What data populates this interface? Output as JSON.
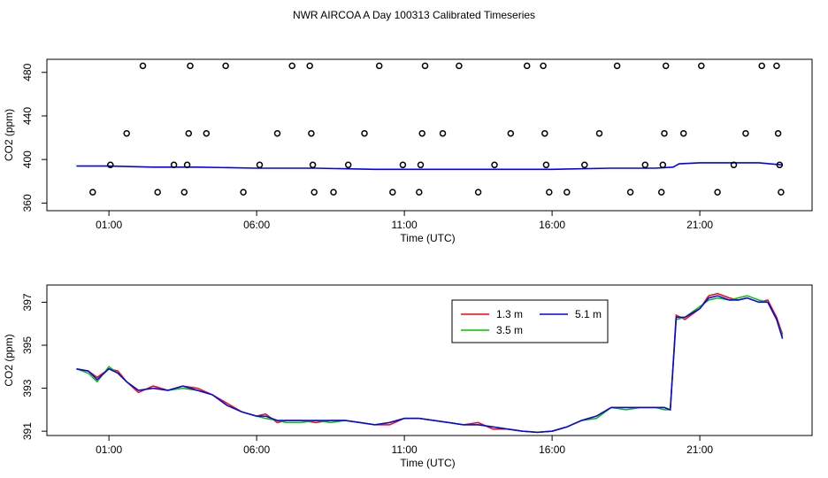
{
  "figure": {
    "title": "NWR AIRCOA A  Day 100313  Calibrated Timeseries"
  },
  "chart_data": [
    {
      "type": "scatter",
      "title": "",
      "xlabel": "Time (UTC)",
      "ylabel": "CO2 (ppm)",
      "x_unit": "hours UTC",
      "xlim": [
        -1.1,
        24.8
      ],
      "ylim": [
        353,
        492
      ],
      "x_ticks": [
        {
          "value": 1,
          "label": "01:00"
        },
        {
          "value": 6,
          "label": "06:00"
        },
        {
          "value": 11,
          "label": "11:00"
        },
        {
          "value": 16,
          "label": "16:00"
        },
        {
          "value": 21,
          "label": "21:00"
        }
      ],
      "y_ticks": [
        {
          "value": 360,
          "label": "360"
        },
        {
          "value": 400,
          "label": "400"
        },
        {
          "value": 440,
          "label": "440"
        },
        {
          "value": 480,
          "label": "480"
        }
      ],
      "line_color": "#0000ff",
      "line": {
        "x": [
          -0.1,
          1.0,
          2.5,
          4.0,
          6.0,
          8.0,
          10.0,
          12.0,
          14.0,
          16.0,
          18.0,
          19.5,
          20.1,
          20.3,
          21.0,
          22.0,
          23.0,
          23.8
        ],
        "y": [
          394,
          394,
          393,
          393,
          392,
          392,
          391,
          391,
          391,
          391,
          392,
          392,
          393,
          396,
          397,
          397,
          397,
          395
        ]
      },
      "points": {
        "x": [
          0.45,
          1.05,
          1.6,
          2.15,
          2.65,
          3.2,
          3.55,
          3.65,
          3.7,
          3.75,
          4.3,
          4.95,
          5.55,
          6.1,
          6.7,
          7.2,
          7.8,
          7.85,
          7.9,
          7.95,
          8.6,
          9.1,
          9.65,
          10.15,
          10.6,
          10.95,
          11.5,
          11.55,
          11.6,
          11.7,
          12.3,
          12.85,
          13.5,
          14.05,
          14.6,
          15.15,
          15.7,
          15.75,
          15.8,
          15.9,
          16.5,
          17.1,
          17.6,
          18.2,
          18.65,
          19.15,
          19.7,
          19.75,
          19.8,
          19.85,
          20.45,
          21.05,
          21.6,
          22.15,
          22.55,
          23.1,
          23.6,
          23.65,
          23.7,
          23.75
        ],
        "y": [
          370,
          395,
          424,
          486,
          370,
          395,
          370,
          395,
          424,
          486,
          424,
          486,
          370,
          395,
          424,
          486,
          486,
          424,
          395,
          370,
          370,
          395,
          424,
          486,
          370,
          395,
          370,
          395,
          424,
          486,
          424,
          486,
          370,
          395,
          424,
          486,
          486,
          424,
          395,
          370,
          370,
          395,
          424,
          486,
          370,
          395,
          370,
          395,
          424,
          486,
          424,
          486,
          370,
          395,
          424,
          486,
          486,
          424,
          395,
          370
        ]
      }
    },
    {
      "type": "line",
      "title": "",
      "xlabel": "Time (UTC)",
      "ylabel": "CO2 (ppm)",
      "x_unit": "hours UTC",
      "xlim": [
        -1.1,
        24.8
      ],
      "ylim": [
        390.8,
        397.8
      ],
      "x_ticks": [
        {
          "value": 1,
          "label": "01:00"
        },
        {
          "value": 6,
          "label": "06:00"
        },
        {
          "value": 11,
          "label": "11:00"
        },
        {
          "value": 16,
          "label": "16:00"
        },
        {
          "value": 21,
          "label": "21:00"
        }
      ],
      "y_ticks": [
        {
          "value": 391,
          "label": "391"
        },
        {
          "value": 393,
          "label": "393"
        },
        {
          "value": 395,
          "label": "395"
        },
        {
          "value": 397,
          "label": "397"
        }
      ],
      "legend_position": "top-right",
      "x": [
        -0.1,
        0.3,
        0.6,
        1.0,
        1.3,
        1.6,
        2.0,
        2.5,
        3.0,
        3.5,
        4.0,
        4.5,
        5.0,
        5.5,
        6.0,
        6.3,
        6.7,
        7.0,
        7.5,
        8.0,
        8.5,
        9.0,
        9.5,
        10.0,
        10.5,
        11.0,
        11.5,
        12.0,
        12.5,
        13.0,
        13.5,
        14.0,
        14.5,
        15.0,
        15.5,
        16.0,
        16.5,
        17.0,
        17.5,
        18.0,
        18.5,
        19.0,
        19.5,
        19.8,
        20.0,
        20.2,
        20.5,
        21.0,
        21.3,
        21.6,
        22.0,
        22.3,
        22.6,
        23.0,
        23.3,
        23.6,
        23.8
      ],
      "series": [
        {
          "name": "1.3 m",
          "color": "#ff0000",
          "values": [
            393.9,
            393.8,
            393.5,
            393.9,
            393.8,
            393.3,
            392.8,
            393.1,
            392.9,
            393.1,
            393.0,
            392.7,
            392.3,
            391.9,
            391.7,
            391.8,
            391.4,
            391.5,
            391.5,
            391.4,
            391.5,
            391.5,
            391.4,
            391.3,
            391.3,
            391.6,
            391.6,
            391.5,
            391.4,
            391.3,
            391.4,
            391.1,
            391.1,
            391.0,
            390.95,
            391.0,
            391.2,
            391.5,
            391.7,
            392.1,
            392.1,
            392.1,
            392.1,
            392.1,
            392.0,
            396.4,
            396.2,
            396.7,
            397.3,
            397.4,
            397.2,
            397.1,
            397.2,
            397.0,
            397.1,
            396.3,
            395.5
          ]
        },
        {
          "name": "3.5 m",
          "color": "#00c000",
          "values": [
            393.9,
            393.7,
            393.3,
            394.0,
            393.7,
            393.3,
            392.9,
            393.0,
            392.9,
            393.0,
            392.9,
            392.7,
            392.2,
            391.9,
            391.7,
            391.6,
            391.5,
            391.4,
            391.4,
            391.5,
            391.4,
            391.5,
            391.4,
            391.3,
            391.4,
            391.6,
            391.6,
            391.5,
            391.4,
            391.3,
            391.3,
            391.2,
            391.1,
            391.0,
            390.95,
            391.0,
            391.2,
            391.5,
            391.6,
            392.1,
            392.0,
            392.1,
            392.1,
            392.0,
            392.0,
            396.2,
            396.3,
            396.8,
            397.1,
            397.2,
            397.1,
            397.2,
            397.3,
            397.1,
            397.0,
            396.2,
            395.4
          ]
        },
        {
          "name": "5.1 m",
          "color": "#0000ff",
          "values": [
            393.9,
            393.8,
            393.4,
            393.9,
            393.7,
            393.3,
            392.9,
            393.0,
            392.9,
            393.1,
            392.9,
            392.7,
            392.2,
            391.9,
            391.7,
            391.7,
            391.5,
            391.5,
            391.5,
            391.5,
            391.5,
            391.5,
            391.4,
            391.3,
            391.4,
            391.6,
            391.6,
            391.5,
            391.4,
            391.3,
            391.3,
            391.2,
            391.1,
            391.0,
            390.95,
            391.0,
            391.2,
            391.5,
            391.7,
            392.1,
            392.1,
            392.1,
            392.1,
            392.1,
            392.0,
            396.3,
            396.3,
            396.7,
            397.2,
            397.3,
            397.1,
            397.1,
            397.2,
            397.0,
            397.0,
            396.2,
            395.3
          ]
        }
      ]
    }
  ]
}
